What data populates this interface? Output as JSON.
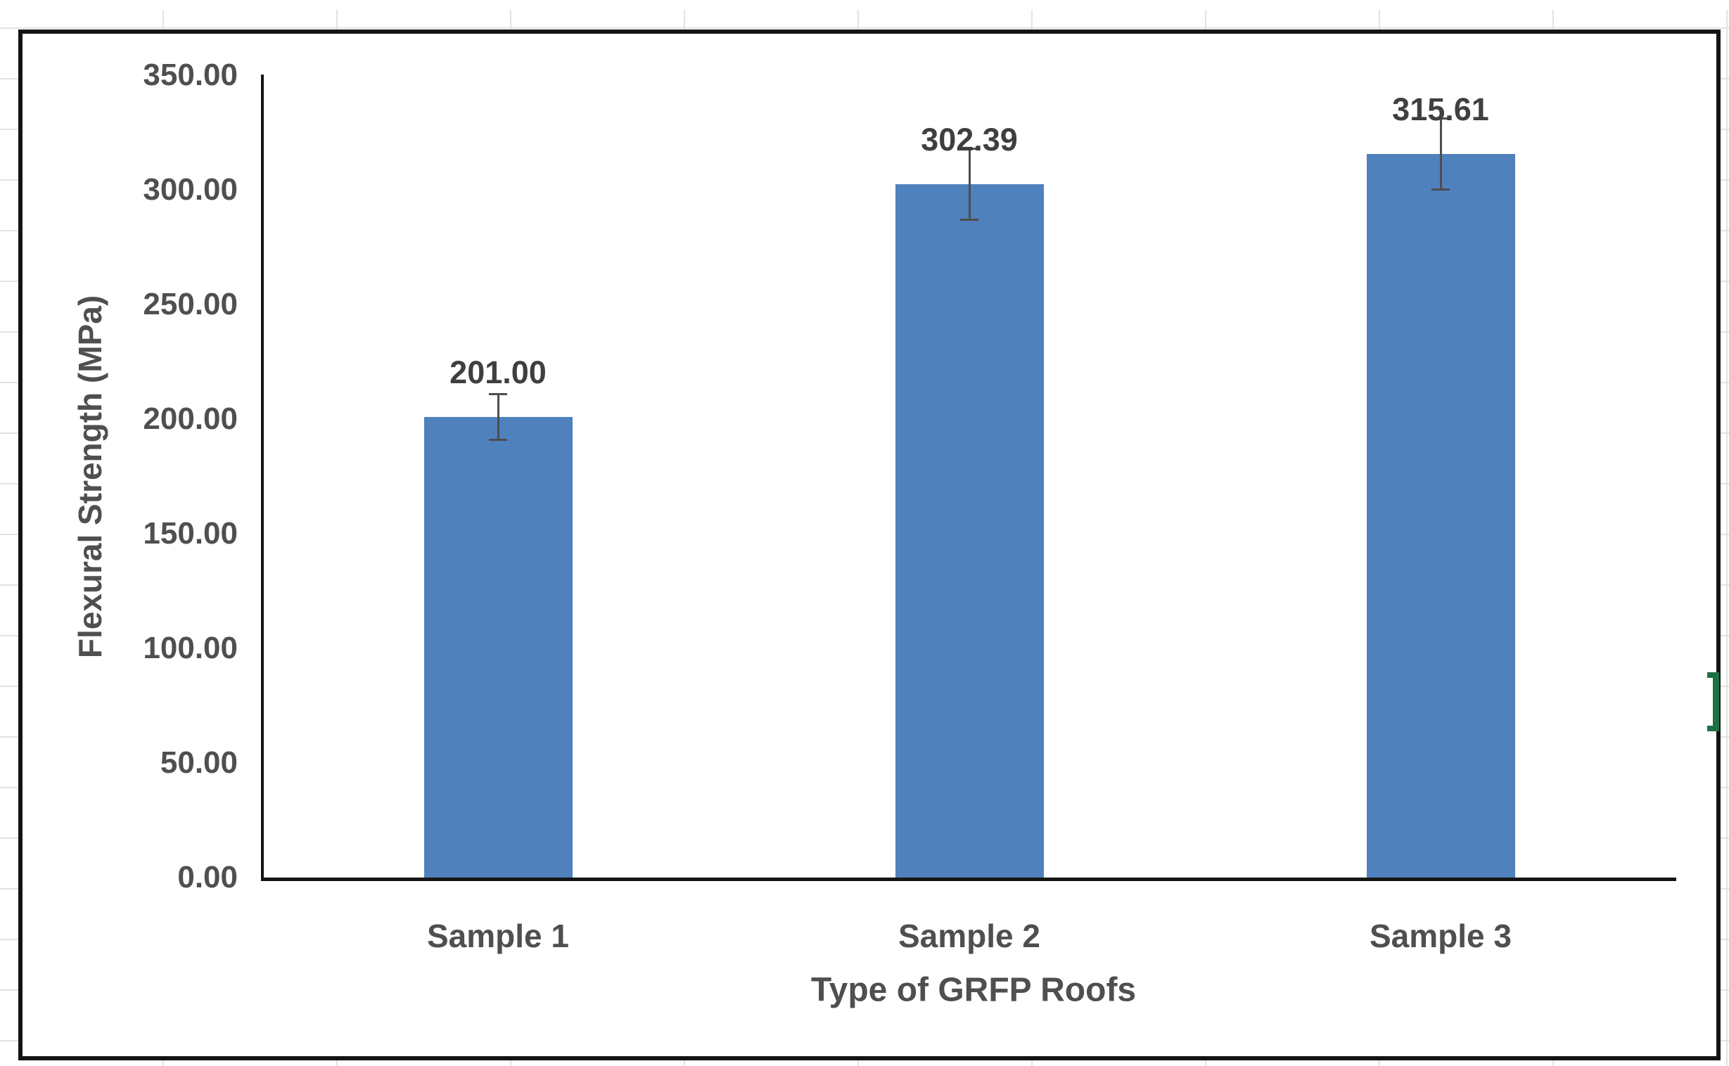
{
  "chart_data": {
    "type": "bar",
    "categories": [
      "Sample 1",
      "Sample 2",
      "Sample 3"
    ],
    "values": [
      201.0,
      302.39,
      315.61
    ],
    "value_labels": [
      "201.00",
      "302.39",
      "315.61"
    ],
    "error_bars": [
      10.5,
      16.0,
      16.0
    ],
    "title": "",
    "xlabel": "Type of GRFP Roofs",
    "ylabel": "Flexural Strength (MPa)",
    "ylim": [
      0,
      350
    ],
    "ytick_step": 50,
    "ytick_labels": [
      "0.00",
      "50.00",
      "100.00",
      "150.00",
      "200.00",
      "250.00",
      "300.00",
      "350.00"
    ],
    "grid": "off",
    "legend": "none",
    "bar_color": "#4F81BD",
    "error_bar_color": "#4d4d4d",
    "axis_color": "#151515",
    "label_color": "#3f3f3f",
    "tick_color": "#4f4f4f"
  },
  "spreadsheet": {
    "gridline_color": "#e2e2e2",
    "selection_handle_color": "#1e7145"
  }
}
